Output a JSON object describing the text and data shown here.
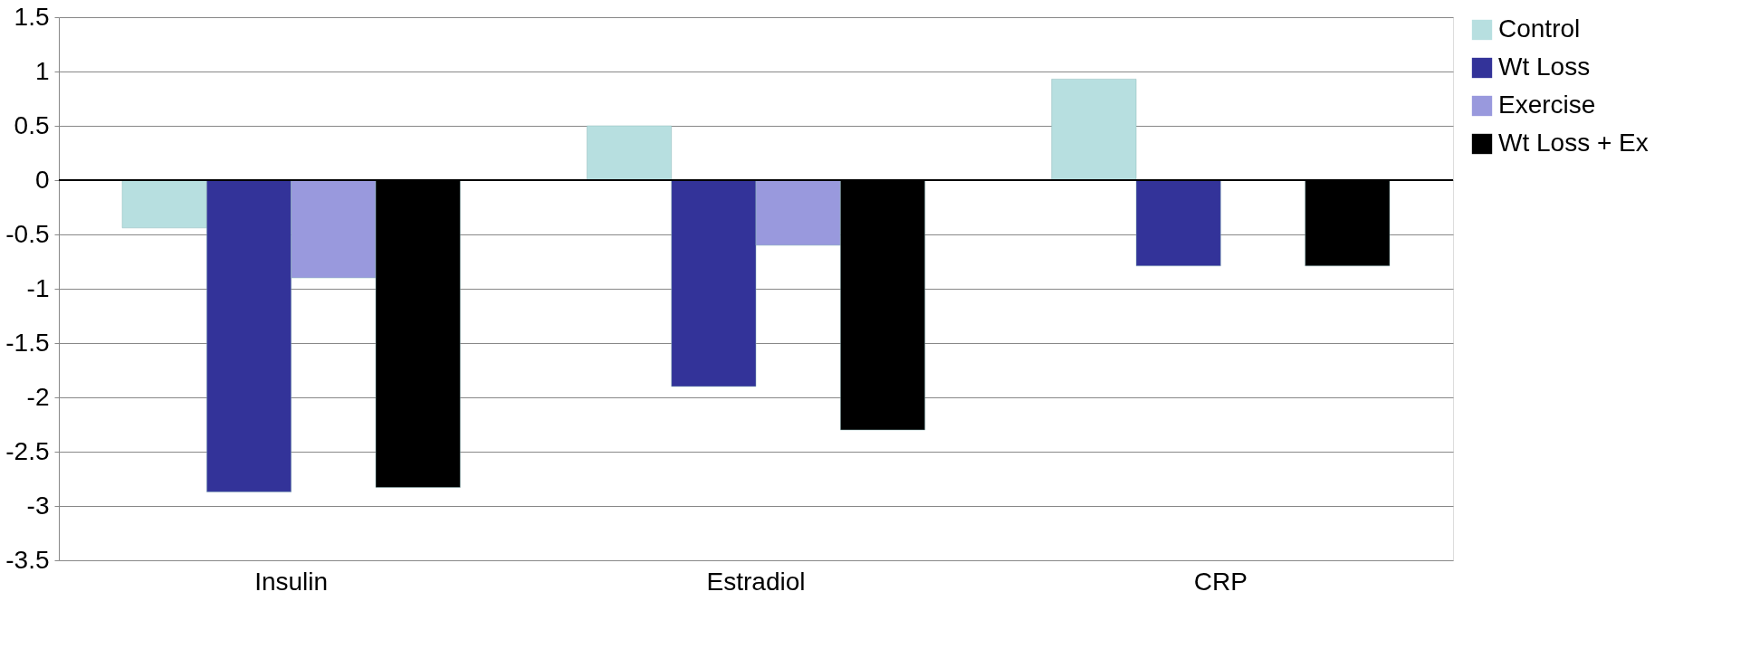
{
  "chart_data": {
    "type": "bar",
    "categories": [
      "Insulin",
      "Estradiol",
      "CRP"
    ],
    "series": [
      {
        "name": "Control",
        "color": "#b7dfe0",
        "values": [
          -0.44,
          0.5,
          0.93
        ]
      },
      {
        "name": "Wt Loss",
        "color": "#333399",
        "values": [
          -2.87,
          -1.9,
          -0.79
        ]
      },
      {
        "name": "Exercise",
        "color": "#9999dd",
        "values": [
          -0.9,
          -0.6,
          null
        ]
      },
      {
        "name": "Wt Loss + Ex",
        "color": "#000000",
        "values": [
          -2.83,
          -2.3,
          -0.79
        ]
      }
    ],
    "ylim": [
      -3.5,
      1.5
    ],
    "yticks": [
      -3.5,
      -3,
      -2.5,
      -2,
      -1.5,
      -1,
      -0.5,
      0,
      0.5,
      1,
      1.5
    ],
    "grid": "y",
    "legend": "right"
  }
}
